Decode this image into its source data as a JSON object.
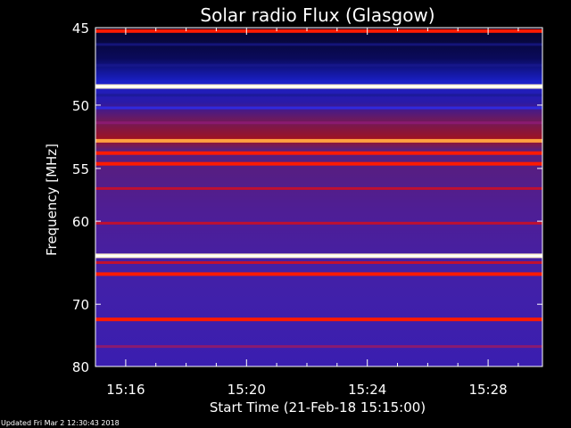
{
  "chart_data": {
    "type": "heatmap",
    "title": "Solar radio Flux (Glasgow)",
    "xlabel": "Start Time (21-Feb-18 15:15:00)",
    "ylabel": "Frequency [MHz]",
    "x_ticks": [
      "15:16",
      "15:20",
      "15:24",
      "15:28"
    ],
    "x_tick_minutes": [
      16,
      20,
      24,
      28
    ],
    "xlim_minutes": [
      15.0,
      29.8
    ],
    "y_ticks": [
      45,
      50,
      55,
      60,
      70,
      80
    ],
    "ylim_mhz": [
      45,
      80
    ],
    "y_scale": "reciprocal",
    "grid": false,
    "colors": {
      "background": "#000000",
      "low": "#1a1aa0",
      "mid": "#5a1e9a",
      "high": "#ff1a00",
      "peak": "#fff2d0"
    },
    "bands": [
      {
        "mhz": 45.2,
        "level": 0.75
      },
      {
        "mhz": 46.0,
        "level": 0.05
      },
      {
        "mhz": 47.3,
        "level": 0.06
      },
      {
        "mhz": 48.7,
        "level": 1.0
      },
      {
        "mhz": 49.3,
        "level": 0.15
      },
      {
        "mhz": 50.2,
        "level": 0.25
      },
      {
        "mhz": 51.3,
        "level": 0.35
      },
      {
        "mhz": 52.7,
        "level": 0.92
      },
      {
        "mhz": 53.7,
        "level": 0.62
      },
      {
        "mhz": 54.6,
        "level": 0.72
      },
      {
        "mhz": 56.8,
        "level": 0.45
      },
      {
        "mhz": 60.2,
        "level": 0.42
      },
      {
        "mhz": 63.8,
        "level": 1.0
      },
      {
        "mhz": 64.6,
        "level": 0.5
      },
      {
        "mhz": 66.0,
        "level": 0.62
      },
      {
        "mhz": 72.2,
        "level": 0.78
      },
      {
        "mhz": 76.5,
        "level": 0.38
      }
    ]
  },
  "footer": {
    "updated_text": "Updated Fri Mar  2 12:30:43 2018"
  }
}
